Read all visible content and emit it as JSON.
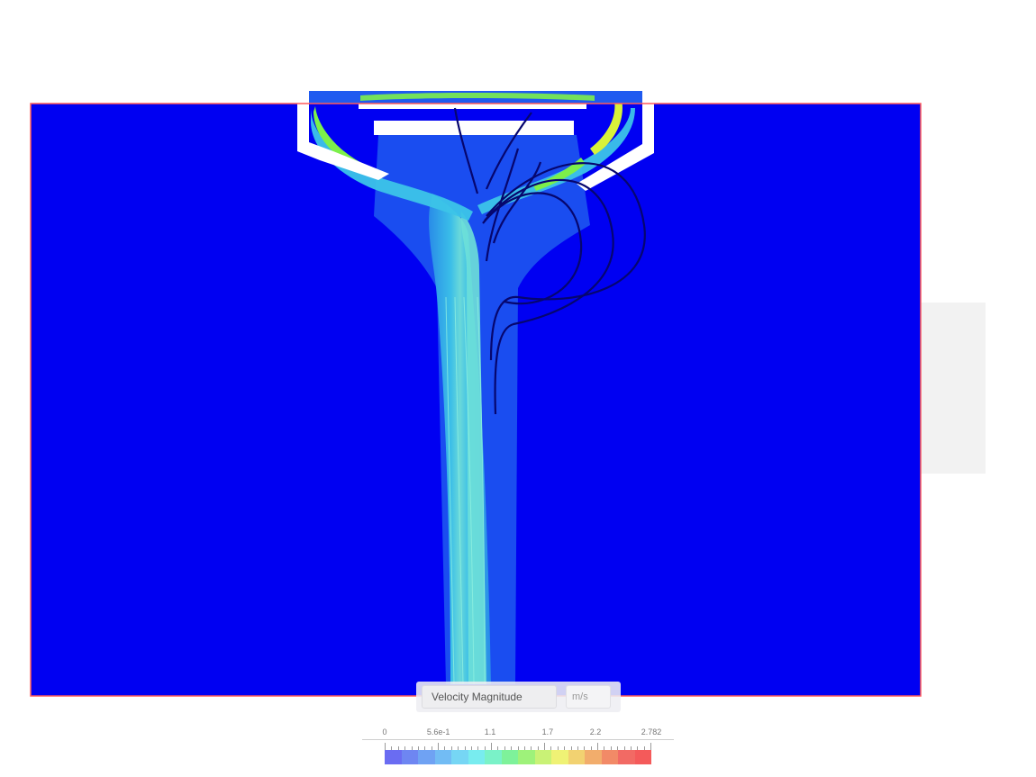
{
  "legend": {
    "quantity_label": "Velocity Magnitude",
    "unit_label": "m/s",
    "scale_min": 0,
    "scale_max": 2.782,
    "tick_labels": [
      "0",
      "5.6e-1",
      "1.1",
      "1.7",
      "2.2",
      "2.782"
    ],
    "tick_values": [
      0,
      0.56,
      1.1,
      1.7,
      2.2,
      2.782
    ],
    "colorbar_colors": [
      "#6a6cf2",
      "#6e86f2",
      "#6fa2f3",
      "#72bcf4",
      "#76d6f4",
      "#78ecef",
      "#7af2c8",
      "#7ef29a",
      "#9ef27a",
      "#c9f276",
      "#eff275",
      "#f2d271",
      "#f2ad6c",
      "#f28a67",
      "#f26a64",
      "#f45a5a"
    ]
  },
  "scene": {
    "background_color": "#0000f2",
    "domain_outline_color": "#ff5a5a",
    "solid_color": "#ffffff",
    "plume_colors": [
      "#1f5af0",
      "#2a8fe8",
      "#3cc4e8",
      "#6ee0d8"
    ],
    "hot_colors": [
      "#7cf04a",
      "#d8f23a",
      "#f2e23a"
    ],
    "streamline_dark_color": "#06066e"
  }
}
